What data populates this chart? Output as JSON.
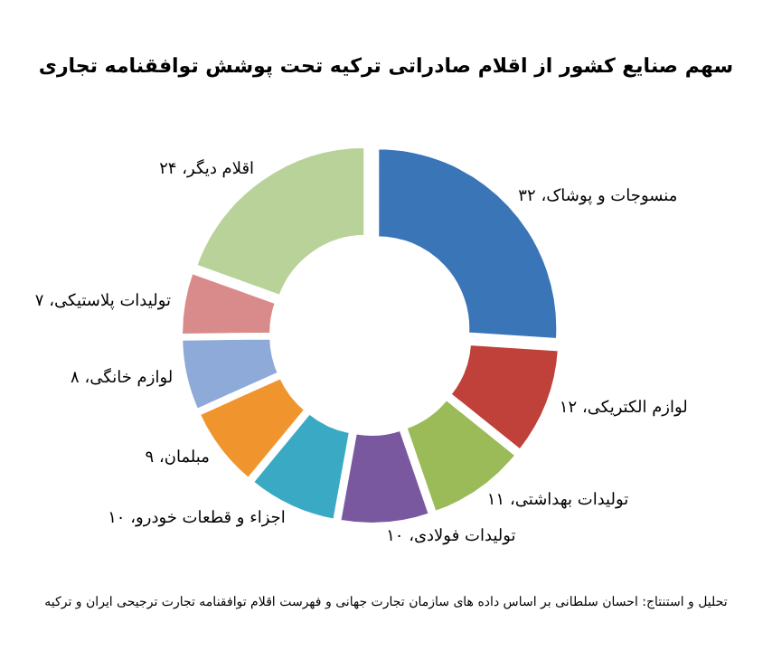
{
  "chart_data": {
    "type": "donut",
    "title": "سهم صنایع کشور از اقلام صادراتی ترکیه تحت پوشش توافقنامه تجاری",
    "categories": [
      "منسوجات و پوشاک",
      "لوازم الکتریکی",
      "تولیدات بهداشتی",
      "تولیدات فولادی",
      "اجزاء و قطعات خودرو",
      "مبلمان",
      "لوازم خانگی",
      "تولیدات پلاستیکی",
      "اقلام دیگر"
    ],
    "values": [
      32,
      12,
      11,
      10,
      10,
      9,
      8,
      7,
      24
    ],
    "value_labels": [
      "۳۲",
      "۱۲",
      "۱۱",
      "۱۰",
      "۱۰",
      "۹",
      "۸",
      "۷",
      "۲۴"
    ],
    "colors": [
      "#3a75b8",
      "#c0403a",
      "#9bbb59",
      "#7a58a0",
      "#3aaac4",
      "#f0952e",
      "#8eaad8",
      "#d98b8b",
      "#b8d29a"
    ],
    "annotations": [
      "تحلیل و استنتاج: احسان سلطانی بر اساس داده های سازمان تجارت جهانی و فهرست اقلام توافقنامه تجارت ترجیحی ایران و ترکیه"
    ]
  }
}
